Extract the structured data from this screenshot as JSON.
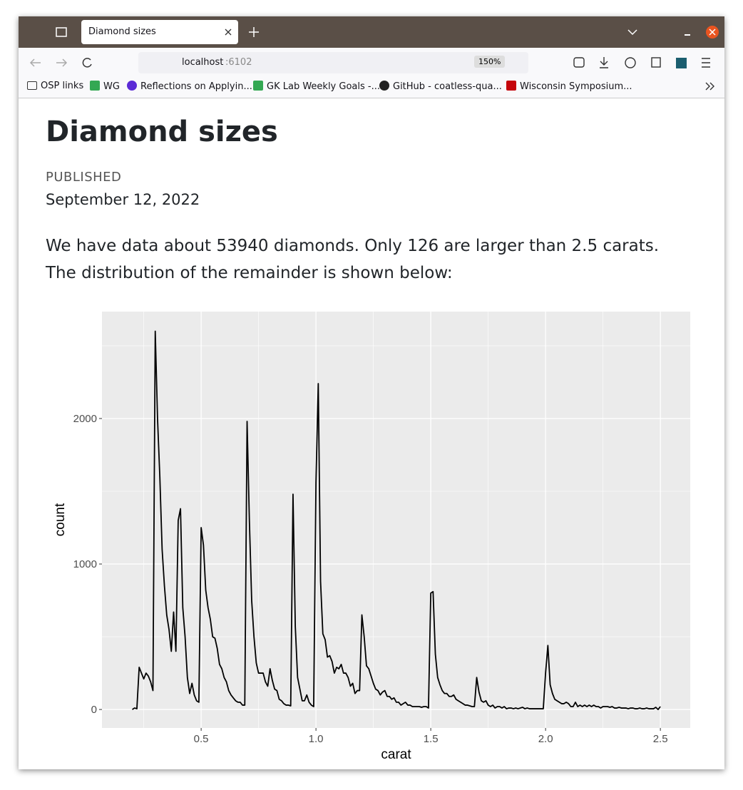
{
  "browser": {
    "tab_title": "Diamond sizes",
    "url_host": "localhost",
    "url_port": ":6102",
    "zoom": "150%",
    "bookmarks": [
      "OSP links",
      "WG",
      "Reflections on Applyin...",
      "GK Lab Weekly Goals -...",
      "GitHub - coatless-qua...",
      "Wisconsin Symposium..."
    ]
  },
  "document": {
    "title": "Diamond sizes",
    "published_label": "PUBLISHED",
    "date": "September 12, 2022",
    "paragraph": "We have data about 53940 diamonds. Only 126 are larger than 2.5 carats. The distribution of the remainder is shown below:"
  },
  "chart_data": {
    "type": "line",
    "xlabel": "carat",
    "ylabel": "count",
    "color": "#000000",
    "background": "#ebebeb",
    "grid": true,
    "x": [
      0.2,
      0.21,
      0.22,
      0.23,
      0.24,
      0.25,
      0.26,
      0.27,
      0.28,
      0.29,
      0.3,
      0.31,
      0.32,
      0.33,
      0.34,
      0.35,
      0.36,
      0.37,
      0.38,
      0.39,
      0.4,
      0.41,
      0.42,
      0.43,
      0.44,
      0.45,
      0.46,
      0.47,
      0.48,
      0.49,
      0.5,
      0.51,
      0.52,
      0.53,
      0.54,
      0.55,
      0.56,
      0.57,
      0.58,
      0.59,
      0.6,
      0.61,
      0.62,
      0.63,
      0.64,
      0.65,
      0.66,
      0.67,
      0.68,
      0.69,
      0.7,
      0.71,
      0.72,
      0.73,
      0.74,
      0.75,
      0.76,
      0.77,
      0.78,
      0.79,
      0.8,
      0.81,
      0.82,
      0.83,
      0.84,
      0.85,
      0.86,
      0.87,
      0.88,
      0.89,
      0.9,
      0.91,
      0.92,
      0.93,
      0.94,
      0.95,
      0.96,
      0.97,
      0.98,
      0.99,
      1.0,
      1.01,
      1.02,
      1.03,
      1.04,
      1.05,
      1.06,
      1.07,
      1.08,
      1.09,
      1.1,
      1.11,
      1.12,
      1.13,
      1.14,
      1.15,
      1.16,
      1.17,
      1.18,
      1.19,
      1.2,
      1.21,
      1.22,
      1.23,
      1.24,
      1.25,
      1.26,
      1.27,
      1.28,
      1.29,
      1.3,
      1.31,
      1.32,
      1.33,
      1.34,
      1.35,
      1.36,
      1.37,
      1.38,
      1.39,
      1.4,
      1.41,
      1.42,
      1.43,
      1.44,
      1.45,
      1.46,
      1.47,
      1.48,
      1.49,
      1.5,
      1.51,
      1.52,
      1.53,
      1.54,
      1.55,
      1.56,
      1.57,
      1.58,
      1.59,
      1.6,
      1.61,
      1.62,
      1.63,
      1.64,
      1.65,
      1.66,
      1.67,
      1.68,
      1.69,
      1.7,
      1.71,
      1.72,
      1.73,
      1.74,
      1.75,
      1.76,
      1.77,
      1.78,
      1.79,
      1.8,
      1.81,
      1.82,
      1.83,
      1.84,
      1.85,
      1.86,
      1.87,
      1.88,
      1.89,
      1.9,
      1.91,
      1.92,
      1.93,
      1.94,
      1.95,
      1.96,
      1.97,
      1.98,
      1.99,
      2.0,
      2.01,
      2.02,
      2.03,
      2.04,
      2.05,
      2.06,
      2.07,
      2.08,
      2.09,
      2.1,
      2.11,
      2.12,
      2.13,
      2.14,
      2.15,
      2.16,
      2.17,
      2.18,
      2.19,
      2.2,
      2.21,
      2.22,
      2.23,
      2.24,
      2.25,
      2.26,
      2.27,
      2.28,
      2.29,
      2.3,
      2.31,
      2.32,
      2.33,
      2.34,
      2.35,
      2.36,
      2.37,
      2.38,
      2.39,
      2.4,
      2.41,
      2.42,
      2.43,
      2.44,
      2.45,
      2.46,
      2.47,
      2.48,
      2.49,
      2.5
    ],
    "values": [
      0,
      10,
      5,
      290,
      250,
      210,
      250,
      230,
      190,
      130,
      2600,
      2000,
      1600,
      1100,
      850,
      650,
      550,
      400,
      670,
      400,
      1300,
      1380,
      700,
      500,
      220,
      110,
      180,
      100,
      60,
      50,
      1250,
      1130,
      820,
      700,
      620,
      500,
      490,
      420,
      310,
      280,
      220,
      190,
      130,
      100,
      80,
      60,
      50,
      50,
      30,
      30,
      1980,
      1300,
      750,
      500,
      320,
      250,
      250,
      250,
      190,
      160,
      280,
      200,
      140,
      130,
      70,
      60,
      40,
      30,
      30,
      25,
      1480,
      570,
      220,
      140,
      60,
      60,
      100,
      50,
      30,
      20,
      1560,
      2240,
      880,
      520,
      480,
      360,
      370,
      330,
      250,
      290,
      280,
      310,
      250,
      250,
      220,
      160,
      180,
      110,
      130,
      130,
      650,
      500,
      300,
      280,
      230,
      180,
      140,
      130,
      100,
      120,
      130,
      90,
      90,
      70,
      80,
      50,
      50,
      30,
      40,
      50,
      30,
      30,
      20,
      20,
      20,
      20,
      15,
      20,
      20,
      10,
      800,
      810,
      380,
      220,
      170,
      130,
      110,
      110,
      90,
      90,
      100,
      70,
      60,
      50,
      40,
      30,
      30,
      25,
      20,
      20,
      220,
      120,
      60,
      50,
      60,
      30,
      20,
      30,
      10,
      20,
      20,
      10,
      20,
      5,
      10,
      10,
      5,
      10,
      5,
      10,
      15,
      5,
      10,
      5,
      5,
      5,
      5,
      5,
      5,
      5,
      250,
      440,
      170,
      110,
      70,
      60,
      50,
      40,
      40,
      50,
      40,
      20,
      20,
      50,
      20,
      30,
      20,
      30,
      20,
      30,
      20,
      30,
      20,
      20,
      10,
      20,
      20,
      20,
      15,
      20,
      10,
      10,
      15,
      10,
      10,
      10,
      5,
      10,
      10,
      5,
      5,
      10,
      5,
      5,
      10,
      5,
      5,
      5,
      15,
      0,
      20
    ],
    "xlim": [
      0.068,
      2.63
    ],
    "ylim": [
      -127,
      2735
    ],
    "xticks": [
      0.5,
      {
        "value": 1,
        "label": "1.0"
      },
      1.5,
      {
        "value": 2,
        "label": "2.0"
      },
      2.5
    ],
    "yticks": [
      0,
      1000,
      2000
    ],
    "minor_xticks": [
      0.25,
      0.75,
      1.25,
      1.75,
      2.25
    ],
    "minor_yticks": [
      500,
      1500,
      2500
    ]
  }
}
